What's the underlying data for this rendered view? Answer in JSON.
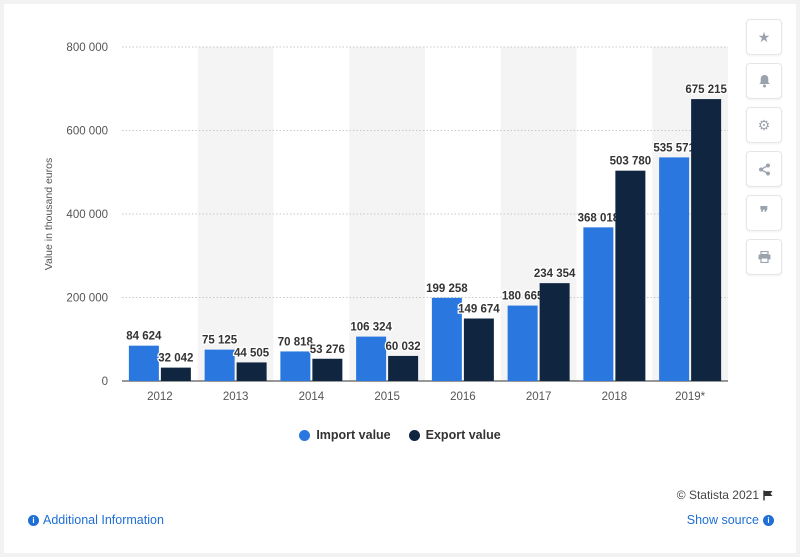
{
  "chart_data": {
    "type": "bar",
    "categories": [
      "2012",
      "2013",
      "2014",
      "2015",
      "2016",
      "2017",
      "2018",
      "2019*"
    ],
    "series": [
      {
        "name": "Import value",
        "color": "#2a77e0",
        "values": [
          84624,
          75125,
          70818,
          106324,
          199258,
          180665,
          368018,
          535571
        ],
        "labels": [
          "84 624",
          "75 125",
          "70 818",
          "106 324",
          "199 258",
          "180 665",
          "368 018",
          "535 571"
        ]
      },
      {
        "name": "Export value",
        "color": "#0f2540",
        "values": [
          32042,
          44505,
          53276,
          60032,
          149674,
          234354,
          503780,
          675215
        ],
        "labels": [
          "32 042",
          "44 505",
          "53 276",
          "60 032",
          "149 674",
          "234 354",
          "503 780",
          "675 215"
        ]
      }
    ],
    "ylabel": "Value in thousand euros",
    "ylim": [
      0,
      800000
    ],
    "yticks": [
      0,
      200000,
      400000,
      600000,
      800000
    ],
    "ytick_labels": [
      "0",
      "200 000",
      "400 000",
      "600 000",
      "800 000"
    ],
    "grid": true,
    "legend_position": "bottom"
  },
  "credit": "© Statista 2021",
  "footer": {
    "additional_info": "Additional Information",
    "show_source": "Show source"
  },
  "sidebar_icons": [
    "star-icon",
    "bell-icon",
    "gear-icon",
    "share-icon",
    "quote-icon",
    "print-icon"
  ]
}
